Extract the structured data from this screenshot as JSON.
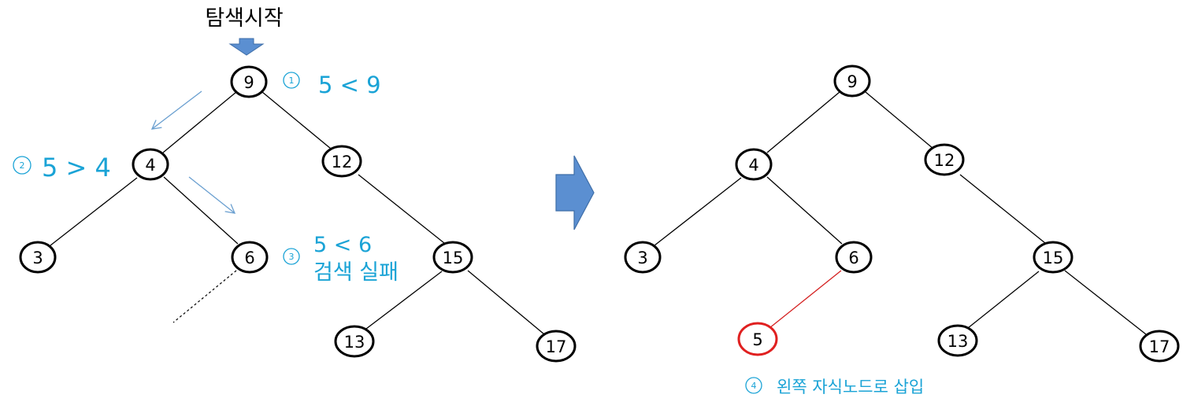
{
  "title": "탐색시작",
  "colors": {
    "annotation": "#1aa3d6",
    "arrow_fill": "#5b8fd1",
    "arrow_stroke": "#3e6ea8",
    "new_node": "#e02020"
  },
  "tree_before": {
    "nodes": [
      "9",
      "4",
      "12",
      "3",
      "6",
      "15",
      "13",
      "17"
    ]
  },
  "tree_after": {
    "nodes": [
      "9",
      "4",
      "12",
      "3",
      "6",
      "15",
      "5",
      "13",
      "17"
    ],
    "inserted": "5"
  },
  "steps": [
    {
      "num": "1",
      "text": "5 < 9"
    },
    {
      "num": "2",
      "text": "5 > 4"
    },
    {
      "num": "3",
      "text": "5 < 6",
      "extra": "검색 실패"
    },
    {
      "num": "4",
      "text": "왼쪽 자식노드로 삽입"
    }
  ]
}
